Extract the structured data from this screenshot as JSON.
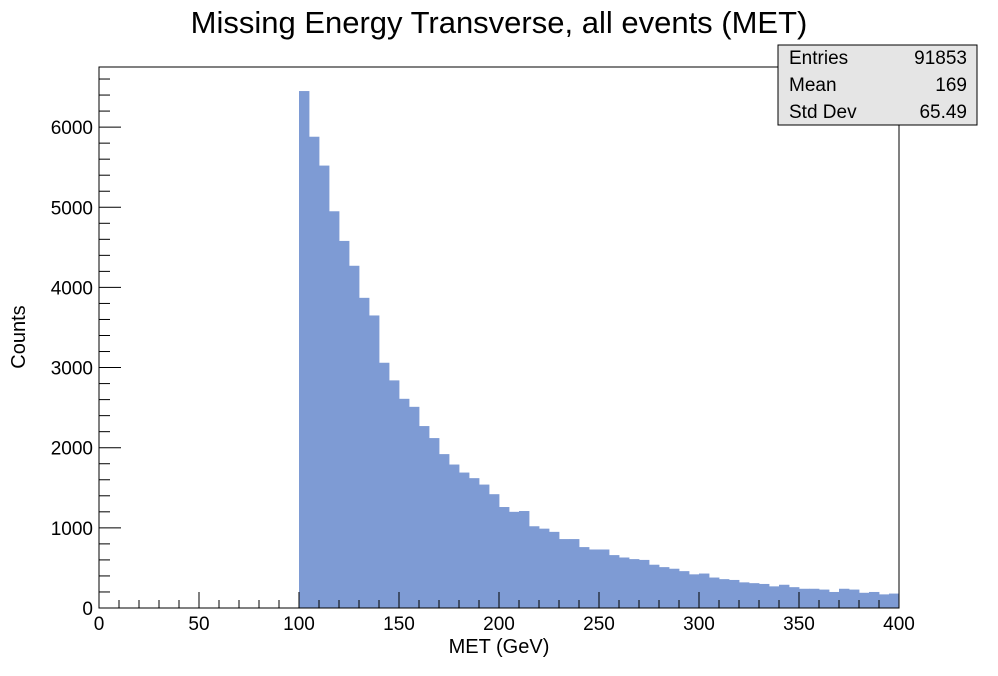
{
  "chart_data": {
    "type": "bar",
    "title": "Missing Energy Transverse, all events (MET)",
    "xlabel": "MET (GeV)",
    "ylabel": "Counts",
    "xlim": [
      0,
      400
    ],
    "ylim": [
      0,
      6750
    ],
    "bin_width": 5,
    "x_ticks": [
      0,
      50,
      100,
      150,
      200,
      250,
      300,
      350,
      400
    ],
    "y_ticks": [
      0,
      1000,
      2000,
      3000,
      4000,
      5000,
      6000
    ],
    "x": [
      100,
      105,
      110,
      115,
      120,
      125,
      130,
      135,
      140,
      145,
      150,
      155,
      160,
      165,
      170,
      175,
      180,
      185,
      190,
      195,
      200,
      205,
      210,
      215,
      220,
      225,
      230,
      235,
      240,
      245,
      250,
      255,
      260,
      265,
      270,
      275,
      280,
      285,
      290,
      295,
      300,
      305,
      310,
      315,
      320,
      325,
      330,
      335,
      340,
      345,
      350,
      355,
      360,
      365,
      370,
      375,
      380,
      385,
      390,
      395
    ],
    "values": [
      6450,
      5880,
      5520,
      4950,
      4580,
      4270,
      3870,
      3650,
      3060,
      2840,
      2610,
      2510,
      2270,
      2120,
      1920,
      1790,
      1690,
      1620,
      1540,
      1420,
      1260,
      1200,
      1210,
      1020,
      990,
      950,
      860,
      860,
      760,
      730,
      730,
      660,
      630,
      610,
      600,
      540,
      510,
      490,
      460,
      420,
      430,
      380,
      360,
      350,
      320,
      310,
      300,
      270,
      290,
      260,
      240,
      240,
      230,
      200,
      240,
      230,
      190,
      200,
      170,
      180
    ],
    "bar_color": "#7e9bd4",
    "grid": false,
    "legend": "none",
    "stats_box": {
      "rows": [
        {
          "label": "Entries",
          "value": "91853"
        },
        {
          "label": "Mean",
          "value": "169"
        },
        {
          "label": "Std Dev",
          "value": "65.49"
        }
      ],
      "placement": "top-right"
    }
  }
}
